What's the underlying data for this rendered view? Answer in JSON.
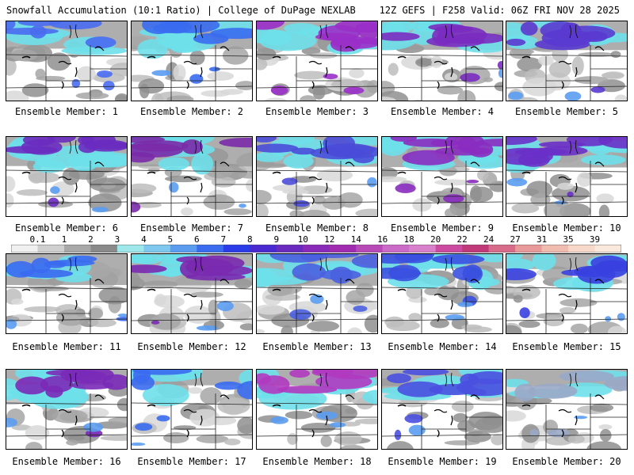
{
  "header": {
    "left": "Snowfall Accumulation (10:1 Ratio) | College of DuPage NEXLAB",
    "right": "12Z GEFS | F258 Valid: 06Z FRI NOV 28 2025"
  },
  "caption_prefix": "Ensemble Member:",
  "members": [
    {
      "number": "1",
      "caption": "Ensemble Member: 1",
      "color": "#4a6cf0",
      "n": 6
    },
    {
      "number": "2",
      "caption": "Ensemble Member: 2",
      "color": "#3a6cf0",
      "n": 7
    },
    {
      "number": "3",
      "caption": "Ensemble Member: 3",
      "color": "#9a2fc8",
      "n": 9
    },
    {
      "number": "4",
      "caption": "Ensemble Member: 4",
      "color": "#7a2cc0",
      "n": 7
    },
    {
      "number": "5",
      "caption": "Ensemble Member: 5",
      "color": "#5a3ad0",
      "n": 8
    },
    {
      "number": "6",
      "caption": "Ensemble Member: 6",
      "color": "#6a2cc0",
      "n": 9
    },
    {
      "number": "7",
      "caption": "Ensemble Member: 7",
      "color": "#7a2aa8",
      "n": 6
    },
    {
      "number": "8",
      "caption": "Ensemble Member: 8",
      "color": "#4a4cd8",
      "n": 8
    },
    {
      "number": "9",
      "caption": "Ensemble Member: 9",
      "color": "#8a2cc0",
      "n": 9
    },
    {
      "number": "10",
      "caption": "Ensemble Member: 10",
      "color": "#6a30c8",
      "n": 8
    },
    {
      "number": "11",
      "caption": "Ensemble Member: 11",
      "color": "#3a6af0",
      "n": 6
    },
    {
      "number": "12",
      "caption": "Ensemble Member: 12",
      "color": "#7a2ab0",
      "n": 7
    },
    {
      "number": "13",
      "caption": "Ensemble Member: 13",
      "color": "#4a60e0",
      "n": 7
    },
    {
      "number": "14",
      "caption": "Ensemble Member: 14",
      "color": "#3a50e0",
      "n": 8
    },
    {
      "number": "15",
      "caption": "Ensemble Member: 15",
      "color": "#3a40e0",
      "n": 7
    },
    {
      "number": "16",
      "caption": "Ensemble Member: 16",
      "color": "#7a2ab8",
      "n": 9
    },
    {
      "number": "17",
      "caption": "Ensemble Member: 17",
      "color": "#3a6af0",
      "n": 5
    },
    {
      "number": "18",
      "caption": "Ensemble Member: 18",
      "color": "#b03ac0",
      "n": 9
    },
    {
      "number": "19",
      "caption": "Ensemble Member: 19",
      "color": "#4a50e0",
      "n": 8
    },
    {
      "number": "20",
      "caption": "Ensemble Member: 20",
      "color": "#9aa8c8",
      "n": 4
    }
  ],
  "colorbar": {
    "labels": [
      "0.1",
      "1",
      "2",
      "3",
      "4",
      "5",
      "6",
      "7",
      "8",
      "9",
      "10",
      "12",
      "14",
      "16",
      "18",
      "20",
      "22",
      "24",
      "27",
      "31",
      "35",
      "39"
    ],
    "colors": [
      "#f0f0f0",
      "#cfcfcf",
      "#a8a8a8",
      "#8a8a8a",
      "#9ee8ec",
      "#7ec8f0",
      "#5a9cf0",
      "#3a6cf0",
      "#2a3ce8",
      "#4a2ad0",
      "#6a2ac0",
      "#8a2ab8",
      "#a02ab0",
      "#b84ab8",
      "#cc6ac8",
      "#d880cc",
      "#cc4aa0",
      "#c03a7a",
      "#d86a8a",
      "#e89a9a",
      "#f0bcb0",
      "#f8d8c8",
      "#fbe8dc"
    ]
  }
}
